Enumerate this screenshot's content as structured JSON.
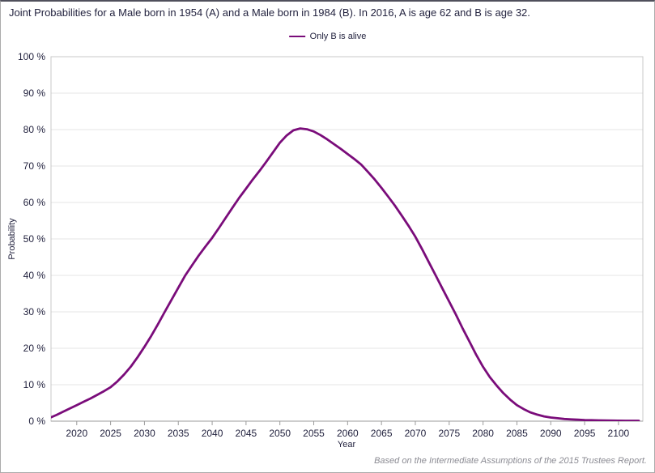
{
  "title": "Joint Probabilities for a Male born in 1954 (A) and a Male born in 1984 (B). In 2016, A is age 62 and B is age 32.",
  "legend": {
    "label": "Only B is alive",
    "color": "#7a0c7a"
  },
  "footer": "Based on the Intermediate Assumptions of the 2015 Trustees Report.",
  "colors": {
    "text": "#23233f",
    "grid": "#e4e4e4",
    "frame": "#c8c8c8",
    "axis": "#9b9b9b",
    "footer_text": "#8b8b93",
    "curve": "#7a0c7a",
    "background": "#ffffff"
  },
  "chart_data": {
    "type": "line",
    "title": "Joint Probabilities for a Male born in 1954 (A) and a Male born in 1984 (B). In 2016, A is age 62 and B is age 32.",
    "xlabel": "Year",
    "ylabel": "Probability",
    "xlim": [
      2016.2,
      2103.6
    ],
    "ylim": [
      0,
      100
    ],
    "grid": true,
    "legend_position": "top-center",
    "x_ticks": [
      2020,
      2025,
      2030,
      2035,
      2040,
      2045,
      2050,
      2055,
      2060,
      2065,
      2070,
      2075,
      2080,
      2085,
      2090,
      2095,
      2100
    ],
    "y_ticks": [
      0,
      10,
      20,
      30,
      40,
      50,
      60,
      70,
      80,
      90,
      100
    ],
    "y_tick_labels": [
      "0 %",
      "10 %",
      "20 %",
      "30 %",
      "40 %",
      "50 %",
      "60 %",
      "70 %",
      "80 %",
      "90 %",
      "100 %"
    ],
    "series": [
      {
        "name": "Only B is alive",
        "color": "#7a0c7a",
        "x": [
          2016,
          2017,
          2018,
          2019,
          2020,
          2021,
          2022,
          2023,
          2024,
          2025,
          2026,
          2027,
          2028,
          2029,
          2030,
          2031,
          2032,
          2033,
          2034,
          2035,
          2036,
          2037,
          2038,
          2039,
          2040,
          2041,
          2042,
          2043,
          2044,
          2045,
          2046,
          2047,
          2048,
          2049,
          2050,
          2051,
          2052,
          2053,
          2054,
          2055,
          2056,
          2057,
          2058,
          2059,
          2060,
          2061,
          2062,
          2063,
          2064,
          2065,
          2066,
          2067,
          2068,
          2069,
          2070,
          2071,
          2072,
          2073,
          2074,
          2075,
          2076,
          2077,
          2078,
          2079,
          2080,
          2081,
          2082,
          2083,
          2084,
          2085,
          2086,
          2087,
          2088,
          2089,
          2090,
          2091,
          2092,
          2093,
          2094,
          2095,
          2096,
          2097,
          2098,
          2099,
          2100,
          2101,
          2102,
          2103
        ],
        "y": [
          0.9,
          1.7,
          2.6,
          3.5,
          4.4,
          5.3,
          6.2,
          7.2,
          8.2,
          9.3,
          10.9,
          12.8,
          15.0,
          17.6,
          20.4,
          23.4,
          26.6,
          30.0,
          33.3,
          36.6,
          39.9,
          42.7,
          45.4,
          47.9,
          50.3,
          53.0,
          55.8,
          58.6,
          61.3,
          63.8,
          66.3,
          68.7,
          71.2,
          73.8,
          76.4,
          78.4,
          79.8,
          80.3,
          80.1,
          79.5,
          78.5,
          77.3,
          76.0,
          74.7,
          73.3,
          71.9,
          70.4,
          68.4,
          66.3,
          64.0,
          61.6,
          59.1,
          56.4,
          53.6,
          50.6,
          47.2,
          43.6,
          40.0,
          36.4,
          32.8,
          29.2,
          25.4,
          21.8,
          18.2,
          14.9,
          12.1,
          9.8,
          7.7,
          5.9,
          4.4,
          3.3,
          2.4,
          1.8,
          1.3,
          1.0,
          0.8,
          0.6,
          0.5,
          0.4,
          0.3,
          0.26,
          0.22,
          0.19,
          0.16,
          0.14,
          0.12,
          0.11,
          0.1
        ]
      }
    ]
  }
}
